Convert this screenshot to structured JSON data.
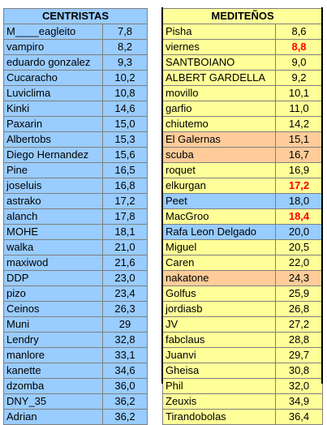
{
  "colors": {
    "blue": "#99ccff",
    "yellow": "#ffff99",
    "orange": "#ffcc99",
    "red_text": "#ff0000"
  },
  "left": {
    "title": "CENTRISTAS",
    "rows": [
      {
        "name": "M____eagleito",
        "value": "7,8"
      },
      {
        "name": "vampiro",
        "value": "8,2"
      },
      {
        "name": "eduardo gonzalez",
        "value": "9,3"
      },
      {
        "name": "Cucaracho",
        "value": "10,2"
      },
      {
        "name": "Luviclima",
        "value": "10,8"
      },
      {
        "name": "Kinki",
        "value": "14,6"
      },
      {
        "name": "Paxarin",
        "value": "15,0"
      },
      {
        "name": "Albertobs",
        "value": "15,3"
      },
      {
        "name": "Diego Hernandez",
        "value": "15,6"
      },
      {
        "name": "Pine",
        "value": "16,5"
      },
      {
        "name": "joseluis",
        "value": "16,8"
      },
      {
        "name": "astrako",
        "value": "17,2"
      },
      {
        "name": "alanch",
        "value": "17,8"
      },
      {
        "name": "MOHE",
        "value": "18,1"
      },
      {
        "name": "walka",
        "value": "21,0"
      },
      {
        "name": "maxiwod",
        "value": "21,6"
      },
      {
        "name": "DDP",
        "value": "23,0"
      },
      {
        "name": "pizo",
        "value": "23,4"
      },
      {
        "name": "Ceinos",
        "value": "26,3"
      },
      {
        "name": "Muni",
        "value": "29"
      },
      {
        "name": "Lendry",
        "value": "32,8"
      },
      {
        "name": "manlore",
        "value": "33,1"
      },
      {
        "name": "kanette",
        "value": "34,6"
      },
      {
        "name": "dzomba",
        "value": "36,0"
      },
      {
        "name": "DNY_35",
        "value": "36,2"
      },
      {
        "name": "Adrian",
        "value": "36,2"
      }
    ]
  },
  "right": {
    "title": "MEDITEÑOS",
    "rows": [
      {
        "name": "Pisha",
        "value": "8,6",
        "bg": "yellow",
        "red": false
      },
      {
        "name": "viernes",
        "value": "8,8",
        "bg": "yellow",
        "red": true
      },
      {
        "name": "SANTBOIANO",
        "value": "9,0",
        "bg": "yellow",
        "red": false
      },
      {
        "name": "ALBERT GARDELLA",
        "value": "9,2",
        "bg": "yellow",
        "red": false
      },
      {
        "name": "movillo",
        "value": "10,1",
        "bg": "yellow",
        "red": false
      },
      {
        "name": "garfio",
        "value": "11,0",
        "bg": "yellow",
        "red": false
      },
      {
        "name": "chiutemo",
        "value": "14,2",
        "bg": "yellow",
        "red": false
      },
      {
        "name": "El Galernas",
        "value": "15,1",
        "bg": "orange",
        "red": false
      },
      {
        "name": "scuba",
        "value": "16,7",
        "bg": "orange",
        "red": false
      },
      {
        "name": "roquet",
        "value": "16,9",
        "bg": "yellow",
        "red": false
      },
      {
        "name": "elkurgan",
        "value": "17,2",
        "bg": "yellow",
        "red": true
      },
      {
        "name": "Peet",
        "value": "18,0",
        "bg": "blue",
        "red": false
      },
      {
        "name": "MacGroo",
        "value": "18,4",
        "bg": "yellow",
        "red": true
      },
      {
        "name": "Rafa Leon Delgado",
        "value": "20,0",
        "bg": "blue",
        "red": false
      },
      {
        "name": "Miguel",
        "value": "20,5",
        "bg": "yellow",
        "red": false
      },
      {
        "name": "Caren",
        "value": "22,0",
        "bg": "yellow",
        "red": false
      },
      {
        "name": "nakatone",
        "value": "24,3",
        "bg": "orange",
        "red": false
      },
      {
        "name": "Golfus",
        "value": "25,9",
        "bg": "yellow",
        "red": false
      },
      {
        "name": "jordiasb",
        "value": "26,8",
        "bg": "yellow",
        "red": false
      },
      {
        "name": "JV",
        "value": "27,2",
        "bg": "yellow",
        "red": false
      },
      {
        "name": "fabclaus",
        "value": "28,8",
        "bg": "yellow",
        "red": false
      },
      {
        "name": "Juanvi",
        "value": "29,7",
        "bg": "yellow",
        "red": false
      },
      {
        "name": "Gheisa",
        "value": "30,8",
        "bg": "yellow",
        "red": false
      },
      {
        "name": "Phil",
        "value": "32,0",
        "bg": "yellow",
        "red": false
      },
      {
        "name": "Zeuxis",
        "value": "34,9",
        "bg": "yellow",
        "red": false
      },
      {
        "name": "Tirandobolas",
        "value": "36,4",
        "bg": "yellow",
        "red": false
      }
    ]
  }
}
